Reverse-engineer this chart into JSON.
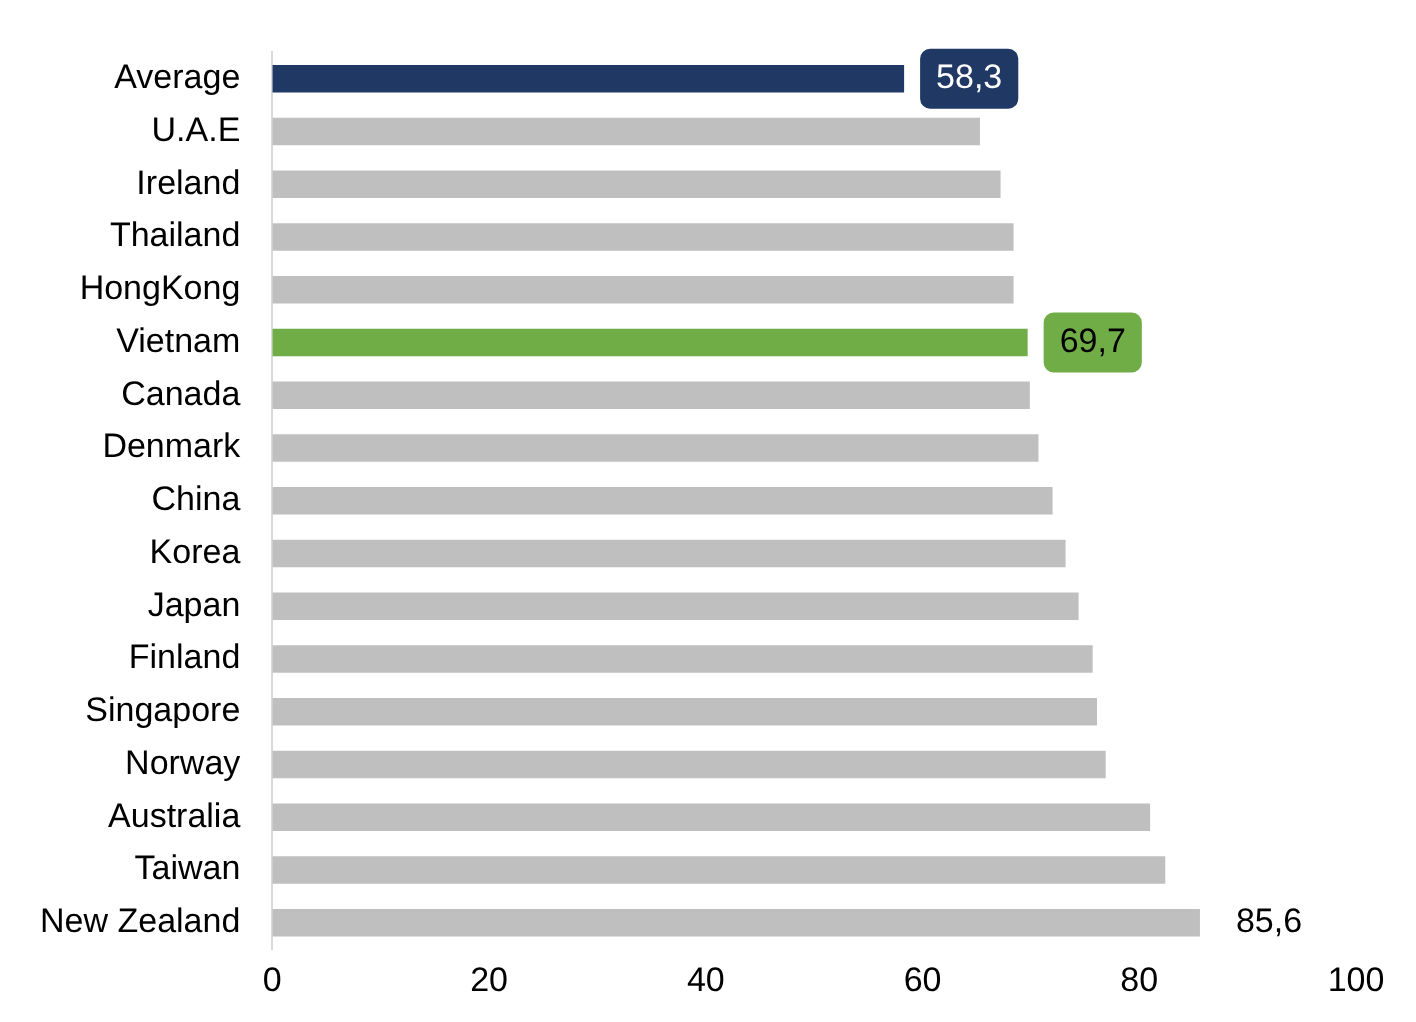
{
  "chart_data": {
    "type": "bar",
    "orientation": "horizontal",
    "categories": [
      "Average",
      "U.A.E",
      "Ireland",
      "Thailand",
      "HongKong",
      "Vietnam",
      "Canada",
      "Denmark",
      "China",
      "Korea",
      "Japan",
      "Finland",
      "Singapore",
      "Norway",
      "Australia",
      "Taiwan",
      "New Zealand"
    ],
    "values": [
      58.3,
      65.3,
      67.2,
      68.4,
      68.4,
      69.7,
      69.9,
      70.7,
      72.0,
      73.2,
      74.4,
      75.7,
      76.1,
      76.9,
      81.0,
      82.4,
      85.6
    ],
    "color": "#bfbfbf",
    "colors": [
      "#1f3864",
      "#bfbfbf",
      "#bfbfbf",
      "#bfbfbf",
      "#bfbfbf",
      "#70ad47",
      "#bfbfbf",
      "#bfbfbf",
      "#bfbfbf",
      "#bfbfbf",
      "#bfbfbf",
      "#bfbfbf",
      "#bfbfbf",
      "#bfbfbf",
      "#bfbfbf",
      "#bfbfbf",
      "#bfbfbf"
    ],
    "value_labels": [
      "58,3",
      null,
      null,
      null,
      null,
      "69,7",
      null,
      null,
      null,
      null,
      null,
      null,
      null,
      null,
      null,
      null,
      "85,6"
    ],
    "xlim": [
      0,
      100
    ],
    "xticks": [
      0,
      20,
      40,
      60,
      80,
      100
    ],
    "grid": false,
    "legend": false
  }
}
